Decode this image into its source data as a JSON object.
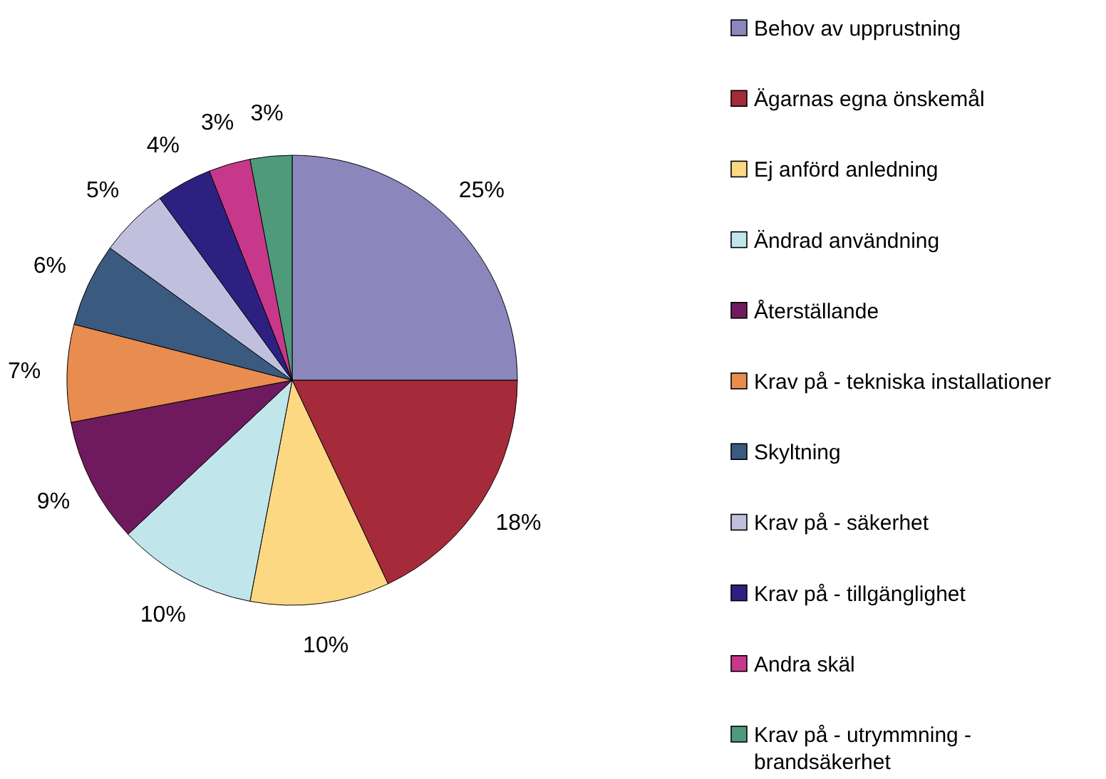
{
  "chart_data": {
    "type": "pie",
    "categories": [
      "Behov av upprustning",
      "Ägarnas egna önskemål",
      "Ej anförd anledning",
      "Ändrad användning",
      "Återställande",
      "Krav på - tekniska installationer",
      "Skyltning",
      "Krav på - säkerhet",
      "Krav på - tillgänglighet",
      "Andra skäl",
      "Krav på - utrymmning - brandsäkerhet"
    ],
    "values": [
      25,
      18,
      10,
      10,
      9,
      7,
      6,
      5,
      4,
      3,
      3
    ],
    "value_labels": [
      "25%",
      "18%",
      "10%",
      "10%",
      "9%",
      "7%",
      "6%",
      "5%",
      "4%",
      "3%",
      "3%"
    ],
    "colors": [
      "#8b87bd",
      "#a52a3a",
      "#fdd882",
      "#c0e6ec",
      "#6f1a5e",
      "#e88c50",
      "#3a5a80",
      "#c0c0de",
      "#2e2080",
      "#c8388a",
      "#4e9a7a"
    ],
    "legend": "right"
  }
}
